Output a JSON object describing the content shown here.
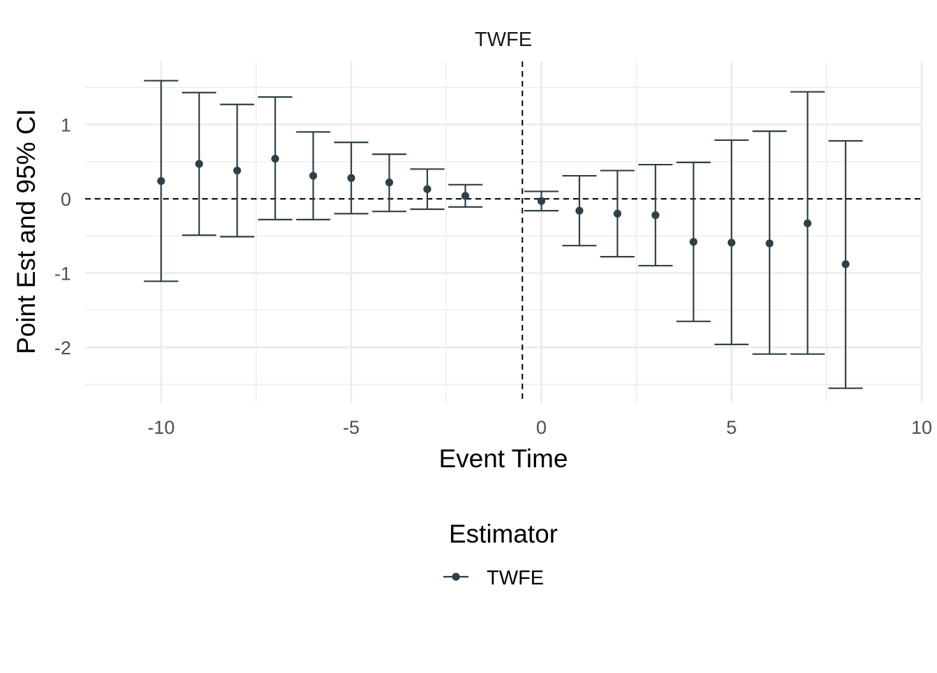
{
  "chart_data": {
    "type": "scatter",
    "facet_title": "TWFE",
    "xlabel": "Event Time",
    "ylabel": "Point Est and 95% CI",
    "xlim": [
      -12,
      10
    ],
    "ylim": [
      -2.75,
      1.85
    ],
    "x_ticks": [
      -10,
      -5,
      0,
      5,
      10
    ],
    "x_tick_labels": [
      "-10",
      "-5",
      "0",
      "5",
      "10"
    ],
    "y_ticks": [
      1,
      0,
      -1,
      -2
    ],
    "y_tick_labels": [
      "1",
      "0",
      "-1",
      "-2"
    ],
    "grid": true,
    "reference_lines": {
      "horizontal_y": 0,
      "vertical_x": -0.5,
      "style": "dashed"
    },
    "legend": {
      "title": "Estimator",
      "position": "bottom",
      "entries": [
        "TWFE"
      ]
    },
    "series": [
      {
        "name": "TWFE",
        "color": "#2f4047",
        "points": [
          {
            "x": -10,
            "y": 0.24,
            "lo": -1.11,
            "hi": 1.59
          },
          {
            "x": -9,
            "y": 0.47,
            "lo": -0.49,
            "hi": 1.43
          },
          {
            "x": -8,
            "y": 0.38,
            "lo": -0.51,
            "hi": 1.27
          },
          {
            "x": -7,
            "y": 0.54,
            "lo": -0.28,
            "hi": 1.37
          },
          {
            "x": -6,
            "y": 0.31,
            "lo": -0.28,
            "hi": 0.9
          },
          {
            "x": -5,
            "y": 0.28,
            "lo": -0.2,
            "hi": 0.76
          },
          {
            "x": -4,
            "y": 0.22,
            "lo": -0.17,
            "hi": 0.6
          },
          {
            "x": -3,
            "y": 0.13,
            "lo": -0.14,
            "hi": 0.4
          },
          {
            "x": -2,
            "y": 0.04,
            "lo": -0.11,
            "hi": 0.19
          },
          {
            "x": 0,
            "y": -0.03,
            "lo": -0.16,
            "hi": 0.1
          },
          {
            "x": 1,
            "y": -0.16,
            "lo": -0.63,
            "hi": 0.31
          },
          {
            "x": 2,
            "y": -0.2,
            "lo": -0.78,
            "hi": 0.38
          },
          {
            "x": 3,
            "y": -0.22,
            "lo": -0.9,
            "hi": 0.46
          },
          {
            "x": 4,
            "y": -0.58,
            "lo": -1.65,
            "hi": 0.49
          },
          {
            "x": 5,
            "y": -0.59,
            "lo": -1.96,
            "hi": 0.79
          },
          {
            "x": 6,
            "y": -0.6,
            "lo": -2.09,
            "hi": 0.91
          },
          {
            "x": 7,
            "y": -0.33,
            "lo": -2.09,
            "hi": 1.44
          },
          {
            "x": 8,
            "y": -0.88,
            "lo": -2.55,
            "hi": 0.78
          }
        ]
      }
    ]
  }
}
